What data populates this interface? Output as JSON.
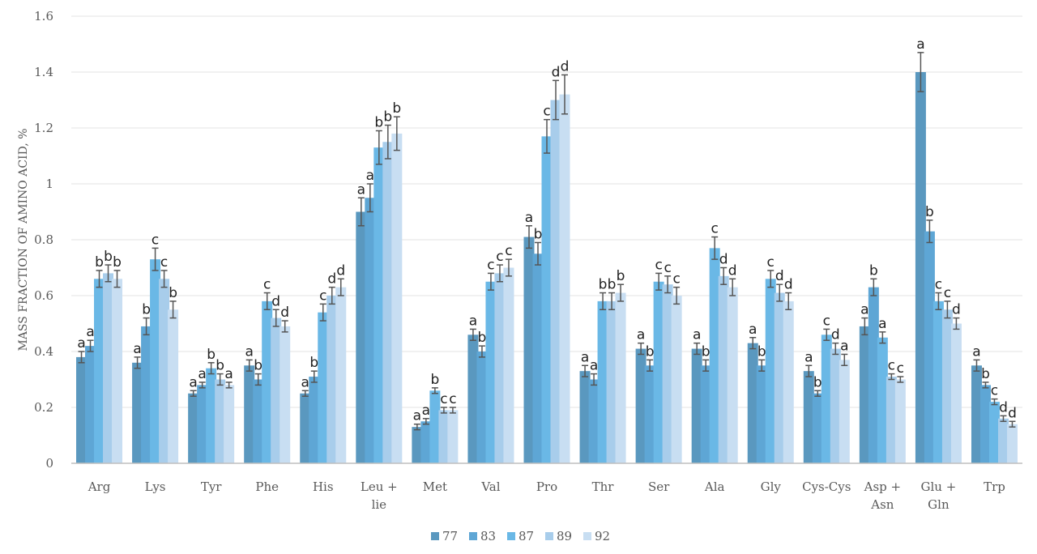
{
  "chart_data": {
    "type": "bar",
    "title": "",
    "xlabel": "",
    "ylabel": "MASS FRACTION OF AMINO ACID, %",
    "ylim": [
      0,
      1.6
    ],
    "yticks": [
      "0",
      "0.2",
      "0.4",
      "0.6",
      "0.8",
      "1",
      "1.2",
      "1.4",
      "1.6"
    ],
    "grid": true,
    "legend_position": "bottom",
    "categories": [
      [
        "Arg"
      ],
      [
        "Lys"
      ],
      [
        "Tyr"
      ],
      [
        "Phe"
      ],
      [
        "His"
      ],
      [
        "Leu +",
        "lie"
      ],
      [
        "Met"
      ],
      [
        "Val"
      ],
      [
        "Pro"
      ],
      [
        "Thr"
      ],
      [
        "Ser"
      ],
      [
        "Ala"
      ],
      [
        "Gly"
      ],
      [
        "Cys-Cys"
      ],
      [
        "Asp +",
        "Asn"
      ],
      [
        "Glu +",
        "Gln"
      ],
      [
        "Trp"
      ]
    ],
    "series": [
      {
        "name": "77",
        "color": "#5a98bf",
        "values": [
          0.38,
          0.36,
          0.25,
          0.35,
          0.25,
          0.9,
          0.13,
          0.46,
          0.81,
          0.33,
          0.41,
          0.41,
          0.43,
          0.33,
          0.49,
          1.4,
          0.35
        ],
        "errors": [
          0.02,
          0.02,
          0.01,
          0.02,
          0.01,
          0.05,
          0.01,
          0.02,
          0.04,
          0.02,
          0.02,
          0.02,
          0.02,
          0.02,
          0.03,
          0.07,
          0.02
        ],
        "letters": [
          "a",
          "a",
          "a",
          "a",
          "a",
          "a",
          "a",
          "a",
          "a",
          "a",
          "a",
          "a",
          "a",
          "a",
          "a",
          "a",
          "a"
        ]
      },
      {
        "name": "83",
        "color": "#5ea6d5",
        "values": [
          0.42,
          0.49,
          0.28,
          0.3,
          0.31,
          0.95,
          0.15,
          0.4,
          0.75,
          0.3,
          0.35,
          0.35,
          0.35,
          0.25,
          0.63,
          0.83,
          0.28
        ],
        "errors": [
          0.02,
          0.03,
          0.01,
          0.02,
          0.02,
          0.05,
          0.01,
          0.02,
          0.04,
          0.02,
          0.02,
          0.02,
          0.02,
          0.01,
          0.03,
          0.04,
          0.01
        ],
        "letters": [
          "a",
          "b",
          "a",
          "b",
          "b",
          "a",
          "a",
          "b",
          "b",
          "a",
          "b",
          "b",
          "b",
          "b",
          "b",
          "b",
          "b"
        ]
      },
      {
        "name": "87",
        "color": "#6ab8e6",
        "values": [
          0.66,
          0.73,
          0.34,
          0.58,
          0.54,
          1.13,
          0.26,
          0.65,
          1.17,
          0.58,
          0.65,
          0.77,
          0.66,
          0.46,
          0.45,
          0.58,
          0.22
        ],
        "errors": [
          0.03,
          0.04,
          0.02,
          0.03,
          0.03,
          0.06,
          0.01,
          0.03,
          0.06,
          0.03,
          0.03,
          0.04,
          0.03,
          0.02,
          0.02,
          0.03,
          0.01
        ],
        "letters": [
          "b",
          "c",
          "b",
          "c",
          "c",
          "b",
          "b",
          "c",
          "c",
          "b",
          "c",
          "c",
          "c",
          "c",
          "a",
          "c",
          "c"
        ]
      },
      {
        "name": "89",
        "color": "#a8cdeb",
        "values": [
          0.68,
          0.66,
          0.3,
          0.52,
          0.6,
          1.15,
          0.19,
          0.68,
          1.3,
          0.58,
          0.64,
          0.67,
          0.61,
          0.41,
          0.31,
          0.55,
          0.16
        ],
        "errors": [
          0.03,
          0.03,
          0.02,
          0.03,
          0.03,
          0.06,
          0.01,
          0.03,
          0.07,
          0.03,
          0.03,
          0.03,
          0.03,
          0.02,
          0.01,
          0.03,
          0.01
        ],
        "letters": [
          "b",
          "c",
          "b",
          "d",
          "d",
          "b",
          "c",
          "c",
          "d",
          "b",
          "c",
          "d",
          "d",
          "d",
          "c",
          "c",
          "d"
        ]
      },
      {
        "name": "92",
        "color": "#c8def2",
        "values": [
          0.66,
          0.55,
          0.28,
          0.49,
          0.63,
          1.18,
          0.19,
          0.7,
          1.32,
          0.61,
          0.6,
          0.63,
          0.58,
          0.37,
          0.3,
          0.5,
          0.14
        ],
        "errors": [
          0.03,
          0.03,
          0.01,
          0.02,
          0.03,
          0.06,
          0.01,
          0.03,
          0.07,
          0.03,
          0.03,
          0.03,
          0.03,
          0.02,
          0.01,
          0.02,
          0.01
        ],
        "letters": [
          "b",
          "b",
          "a",
          "d",
          "d",
          "b",
          "c",
          "c",
          "d",
          "b",
          "c",
          "d",
          "d",
          "a",
          "c",
          "d",
          "d"
        ]
      }
    ]
  }
}
